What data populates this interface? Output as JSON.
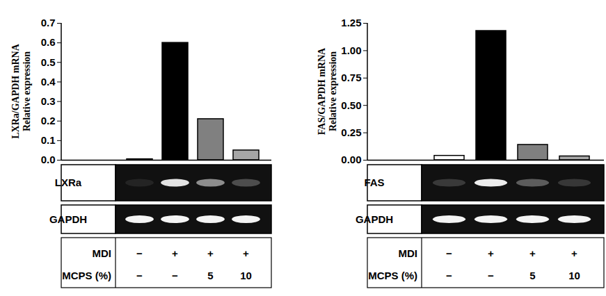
{
  "chart_data": [
    {
      "type": "bar",
      "ylabel": [
        "LXRa/GAPDH mRNA",
        "Relative expression"
      ],
      "categories": [
        null,
        null,
        null,
        null
      ],
      "values": [
        0.005,
        0.6,
        0.21,
        0.05
      ],
      "colors": [
        "#ffffff",
        "#000000",
        "#808080",
        "#a6a6a6"
      ],
      "ylim": [
        0,
        0.7
      ],
      "yticks": [
        {
          "value": 0,
          "label": "0.0"
        },
        0.1,
        0.2,
        0.3,
        0.4,
        0.5,
        0.6,
        0.7
      ],
      "blot": {
        "target": "LXRa",
        "control": "GAPDH"
      }
    },
    {
      "type": "bar",
      "ylabel": [
        "FAS/GAPDH mRNA",
        "Relative expression"
      ],
      "categories": [
        null,
        null,
        null,
        null
      ],
      "values": [
        0.04,
        1.18,
        0.14,
        0.035
      ],
      "colors": [
        "#ffffff",
        "#000000",
        "#808080",
        "#a6a6a6"
      ],
      "ylim": [
        0,
        1.25
      ],
      "yticks": [
        {
          "value": 0,
          "label": "0.00"
        },
        0.25,
        {
          "value": 0.5,
          "label": "0.50"
        },
        0.75,
        {
          "value": 1,
          "label": "1.00"
        },
        1.25
      ],
      "blot": {
        "target": "FAS",
        "control": "GAPDH"
      }
    }
  ],
  "treatments": [
    {
      "label": "MDI",
      "values": [
        "−",
        "+",
        "+",
        "+"
      ]
    },
    {
      "label": "MCPS (%)",
      "values": [
        "−",
        "−",
        "5",
        "10"
      ]
    }
  ]
}
